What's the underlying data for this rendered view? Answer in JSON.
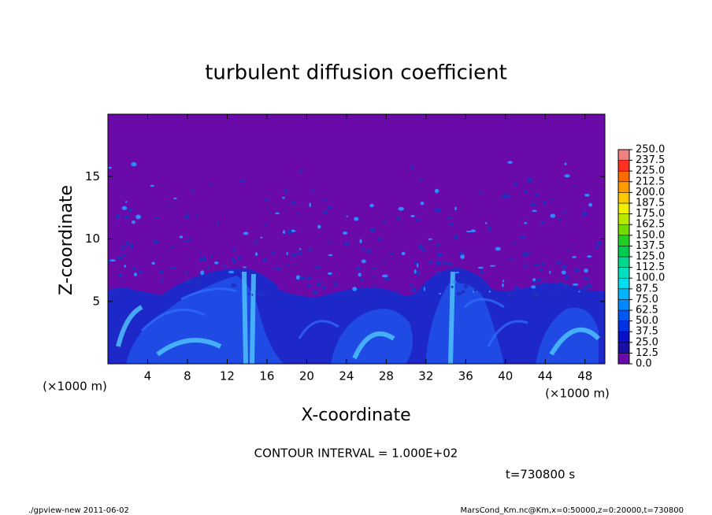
{
  "chart_data": {
    "type": "heatmap",
    "title": "turbulent diffusion coefficient",
    "xlabel": "X-coordinate",
    "ylabel": "Z-coordinate",
    "x_unit": "(×1000 m)",
    "y_unit": "(×1000 m)",
    "xlim": [
      0,
      50
    ],
    "xticks": [
      4,
      8,
      12,
      16,
      20,
      24,
      28,
      32,
      36,
      40,
      44,
      48
    ],
    "ylim": [
      0,
      20
    ],
    "yticks": [
      5,
      10,
      15
    ],
    "colorbar": {
      "levels": [
        {
          "value": 0,
          "label": "0.0"
        },
        12.5,
        {
          "value": 25,
          "label": "25.0"
        },
        37.5,
        {
          "value": 50,
          "label": "50.0"
        },
        62.5,
        {
          "value": 75,
          "label": "75.0"
        },
        87.5,
        {
          "value": 100,
          "label": "100.0"
        },
        112.5,
        {
          "value": 125,
          "label": "125.0"
        },
        137.5,
        {
          "value": 150,
          "label": "150.0"
        },
        162.5,
        {
          "value": 175,
          "label": "175.0"
        },
        187.5,
        {
          "value": 200,
          "label": "200.0"
        },
        212.5,
        {
          "value": 225,
          "label": "225.0"
        },
        237.5,
        {
          "value": 250,
          "label": "250.0"
        }
      ],
      "colors": [
        "#6a0aa8",
        "#1a10a8",
        "#0a10c8",
        "#0030e6",
        "#0058f4",
        "#0088ff",
        "#00b4ff",
        "#00dcf0",
        "#00e0c0",
        "#00d890",
        "#00cc50",
        "#20d020",
        "#70dc00",
        "#b8e800",
        "#f0f000",
        "#ffc800",
        "#ff9a00",
        "#ff6a00",
        "#ff3020",
        "#f08080"
      ]
    },
    "annotations": [
      "CONTOUR INTERVAL = 1.000E+02",
      "t=730800 s"
    ],
    "footer_left": "./gpview-new  2011-06-02",
    "footer_right": "MarsCond_Km.nc@Km,x=0:50000,z=0:20000,t=730800"
  }
}
